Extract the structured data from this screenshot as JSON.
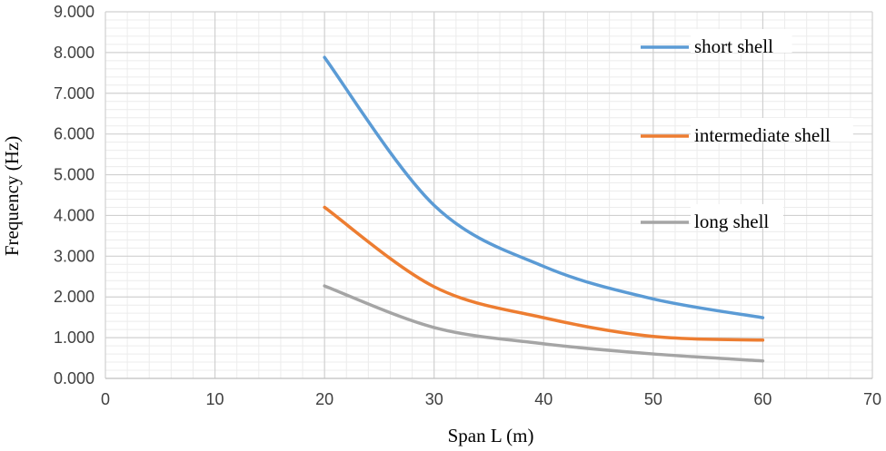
{
  "chart_data": {
    "type": "line",
    "title": "",
    "xlabel": "Span L (m)",
    "ylabel": "Frequency (Hz)",
    "xlim": [
      0,
      70
    ],
    "ylim": [
      0,
      9
    ],
    "x_ticks": [
      "0",
      "10",
      "20",
      "30",
      "40",
      "50",
      "60",
      "70"
    ],
    "y_ticks": [
      "0.000",
      "1.000",
      "2.000",
      "3.000",
      "4.000",
      "5.000",
      "6.000",
      "7.000",
      "8.000",
      "9.000"
    ],
    "grid": "major and minor",
    "legend_position": "right",
    "x": [
      20,
      30,
      40,
      50,
      60
    ],
    "series": [
      {
        "name": "short shell",
        "color": "#5b9bd5",
        "values": [
          7.88,
          4.25,
          2.75,
          1.95,
          1.49
        ]
      },
      {
        "name": "intermediate shell",
        "color": "#ed7d31",
        "values": [
          4.2,
          2.25,
          1.49,
          1.03,
          0.94
        ]
      },
      {
        "name": "long shell",
        "color": "#a5a5a5",
        "values": [
          2.27,
          1.25,
          0.85,
          0.6,
          0.43
        ]
      }
    ]
  }
}
